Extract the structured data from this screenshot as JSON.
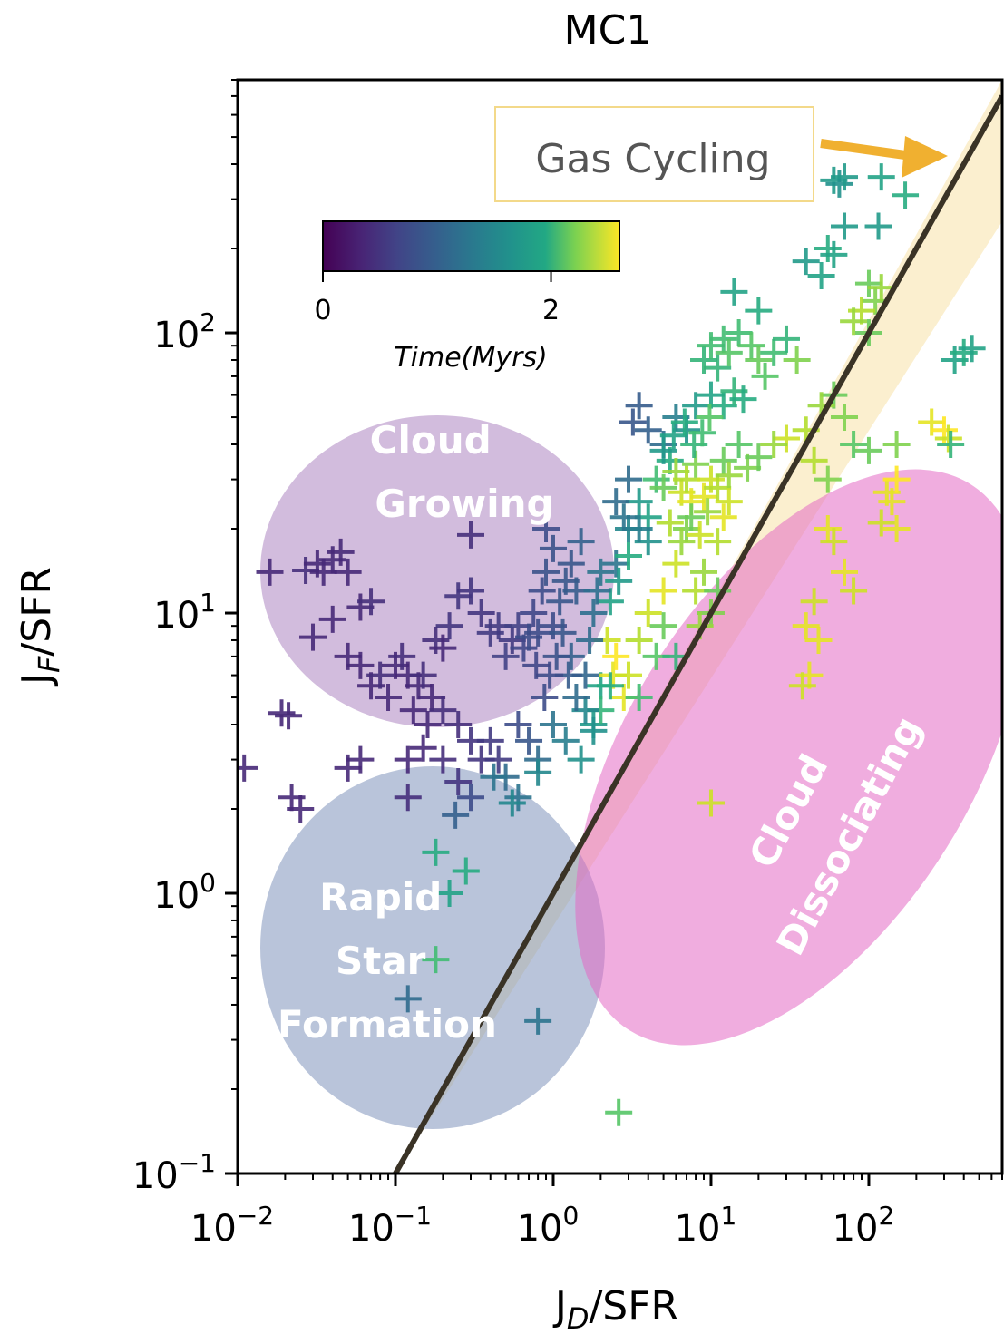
{
  "chart_data": {
    "type": "scatter",
    "title": "MC1",
    "xlabel": "J",
    "xlabel_sub": "D",
    "xlabel_suffix": "/SFR",
    "ylabel": "J",
    "ylabel_sub": "F",
    "ylabel_suffix": "/SFR",
    "xscale": "log",
    "yscale": "log",
    "xlim": [
      0.01,
      700
    ],
    "ylim": [
      0.1,
      800
    ],
    "x_ticks": [
      {
        "value": 0.01,
        "base": "10",
        "exp": "−2"
      },
      {
        "value": 0.1,
        "base": "10",
        "exp": "−1"
      },
      {
        "value": 1,
        "base": "10",
        "exp": "0"
      },
      {
        "value": 10,
        "base": "10",
        "exp": "1"
      },
      {
        "value": 100,
        "base": "10",
        "exp": "2"
      }
    ],
    "y_ticks": [
      {
        "value": 0.1,
        "base": "10",
        "exp": "−1"
      },
      {
        "value": 1,
        "base": "10",
        "exp": "0"
      },
      {
        "value": 10,
        "base": "10",
        "exp": "1"
      },
      {
        "value": 100,
        "base": "10",
        "exp": "2"
      }
    ],
    "grid": false,
    "marker": "plus",
    "colormap": "viridis",
    "colorbar": {
      "label": "Time(Myrs)",
      "range": [
        0,
        2.6
      ],
      "ticks": [
        {
          "value": 0,
          "label": "0"
        },
        {
          "value": 2,
          "label": "2"
        }
      ],
      "placement": "upper-left"
    },
    "line": {
      "name": "equality",
      "color": "#3a3326",
      "x": [
        0.1,
        700
      ],
      "y": [
        0.1,
        700
      ]
    },
    "band": {
      "color": "#f7dfa0",
      "lower": [
        [
          0.1,
          0.1
        ],
        [
          700,
          250
        ]
      ],
      "upper": [
        [
          0.1,
          0.1
        ],
        [
          700,
          800
        ]
      ]
    },
    "regions": [
      {
        "label_lines": [
          "Cloud",
          "Growing"
        ],
        "color": "#9b6ab3",
        "opacity": 0.45
      },
      {
        "label_lines": [
          "Rapid",
          "Star",
          "Formation"
        ],
        "color": "#7f93bb",
        "opacity": 0.55
      },
      {
        "label_lines": [
          "Cloud",
          "Dissociating"
        ],
        "color": "#e46ac4",
        "opacity": 0.55
      }
    ],
    "callout": {
      "text": "Gas Cycling",
      "arrow_color": "#f0b030",
      "box_edge": "#f3d98a"
    },
    "points": [
      [
        0.011,
        2.8,
        0.3
      ],
      [
        0.019,
        4.4,
        0.3
      ],
      [
        0.021,
        4.3,
        0.3
      ],
      [
        0.022,
        2.2,
        0.3
      ],
      [
        0.025,
        2.0,
        0.3
      ],
      [
        0.016,
        14.0,
        0.3
      ],
      [
        0.027,
        14.2,
        0.35
      ],
      [
        0.032,
        15.0,
        0.3
      ],
      [
        0.035,
        14.0,
        0.3
      ],
      [
        0.04,
        15.5,
        0.3
      ],
      [
        0.045,
        16.5,
        0.3
      ],
      [
        0.05,
        14.0,
        0.3
      ],
      [
        0.03,
        8.2,
        0.3
      ],
      [
        0.04,
        9.5,
        0.3
      ],
      [
        0.06,
        10.5,
        0.3
      ],
      [
        0.07,
        11.0,
        0.35
      ],
      [
        0.05,
        7.0,
        0.3
      ],
      [
        0.06,
        6.5,
        0.3
      ],
      [
        0.07,
        5.5,
        0.3
      ],
      [
        0.08,
        6.0,
        0.35
      ],
      [
        0.09,
        5.0,
        0.3
      ],
      [
        0.1,
        6.5,
        0.3
      ],
      [
        0.11,
        7.0,
        0.35
      ],
      [
        0.12,
        6.0,
        0.3
      ],
      [
        0.13,
        4.5,
        0.3
      ],
      [
        0.14,
        5.5,
        0.3
      ],
      [
        0.15,
        6.0,
        0.35
      ],
      [
        0.16,
        4.0,
        0.3
      ],
      [
        0.17,
        5.0,
        0.3
      ],
      [
        0.18,
        8.0,
        0.35
      ],
      [
        0.2,
        7.5,
        0.3
      ],
      [
        0.22,
        9.0,
        0.4
      ],
      [
        0.25,
        11.5,
        0.4
      ],
      [
        0.3,
        12.0,
        0.4
      ],
      [
        0.35,
        10.0,
        0.4
      ],
      [
        0.3,
        19.0,
        0.35
      ],
      [
        0.4,
        8.5,
        0.45
      ],
      [
        0.45,
        9.0,
        0.45
      ],
      [
        0.5,
        7.0,
        0.5
      ],
      [
        0.55,
        8.0,
        0.45
      ],
      [
        0.6,
        9.0,
        0.5
      ],
      [
        0.65,
        7.5,
        0.55
      ],
      [
        0.7,
        8.2,
        0.6
      ],
      [
        0.75,
        10.0,
        0.55
      ],
      [
        0.8,
        8.5,
        0.6
      ],
      [
        0.85,
        12.0,
        0.6
      ],
      [
        0.9,
        14.0,
        0.65
      ],
      [
        1.0,
        9.0,
        0.6
      ],
      [
        1.1,
        11.0,
        0.7
      ],
      [
        1.2,
        13.0,
        0.7
      ],
      [
        0.9,
        20.0,
        0.6
      ],
      [
        1.0,
        17.0,
        0.65
      ],
      [
        1.3,
        15.0,
        0.7
      ],
      [
        1.4,
        12.0,
        0.75
      ],
      [
        1.5,
        18.0,
        0.8
      ],
      [
        0.2,
        4.5,
        0.35
      ],
      [
        0.25,
        4.0,
        0.35
      ],
      [
        0.3,
        3.5,
        0.4
      ],
      [
        0.35,
        3.0,
        0.4
      ],
      [
        0.4,
        3.5,
        0.45
      ],
      [
        0.45,
        3.0,
        0.45
      ],
      [
        0.2,
        3.0,
        0.35
      ],
      [
        0.15,
        3.3,
        0.3
      ],
      [
        0.12,
        3.0,
        0.3
      ],
      [
        0.25,
        2.5,
        0.4
      ],
      [
        0.6,
        4.0,
        0.6
      ],
      [
        0.7,
        3.5,
        0.7
      ],
      [
        0.8,
        3.0,
        0.9
      ],
      [
        1.0,
        4.0,
        1.0
      ],
      [
        1.2,
        3.5,
        1.1
      ],
      [
        0.3,
        2.2,
        0.6
      ],
      [
        0.5,
        2.6,
        0.9
      ],
      [
        0.6,
        2.2,
        1.0
      ],
      [
        0.8,
        2.7,
        1.2
      ],
      [
        1.5,
        3.0,
        1.3
      ],
      [
        1.8,
        4.0,
        1.4
      ],
      [
        2.0,
        5.5,
        1.5
      ],
      [
        2.2,
        8.0,
        2.4
      ],
      [
        2.4,
        6.0,
        2.5
      ],
      [
        2.5,
        7.0,
        2.6
      ],
      [
        0.55,
        2.1,
        1.2
      ],
      [
        0.42,
        2.6,
        1.0
      ],
      [
        0.12,
        2.2,
        0.35
      ],
      [
        0.05,
        2.8,
        0.3
      ],
      [
        0.06,
        3.0,
        0.3
      ],
      [
        0.18,
        1.4,
        1.6
      ],
      [
        0.22,
        1.0,
        1.5
      ],
      [
        0.28,
        1.2,
        1.6
      ],
      [
        0.24,
        1.9,
        0.8
      ],
      [
        0.12,
        0.42,
        0.9
      ],
      [
        0.18,
        0.58,
        1.8
      ],
      [
        0.8,
        0.35,
        1.0
      ],
      [
        2.6,
        0.165,
        1.9
      ],
      [
        2.5,
        15.0,
        1.0
      ],
      [
        3.0,
        20.0,
        1.2
      ],
      [
        3.5,
        25.0,
        1.4
      ],
      [
        4.0,
        22.0,
        1.5
      ],
      [
        4.5,
        30.0,
        1.8
      ],
      [
        5.0,
        28.0,
        2.0
      ],
      [
        5.5,
        35.0,
        1.6
      ],
      [
        6.0,
        32.0,
        2.2
      ],
      [
        6.5,
        27.0,
        2.4
      ],
      [
        7.0,
        30.0,
        2.3
      ],
      [
        7.5,
        25.0,
        2.5
      ],
      [
        8.0,
        34.0,
        2.1
      ],
      [
        9.0,
        26.0,
        2.5
      ],
      [
        10.0,
        30.0,
        2.4
      ],
      [
        11.0,
        28.0,
        2.3
      ],
      [
        12.0,
        35.0,
        2.0
      ],
      [
        13.0,
        31.0,
        2.2
      ],
      [
        15.0,
        40.0,
        1.9
      ],
      [
        17.0,
        33.0,
        2.1
      ],
      [
        20.0,
        36.0,
        2.0
      ],
      [
        4.0,
        45.0,
        0.8
      ],
      [
        5.0,
        40.0,
        0.9
      ],
      [
        6.0,
        50.0,
        1.1
      ],
      [
        7.0,
        45.0,
        1.3
      ],
      [
        8.0,
        55.0,
        1.4
      ],
      [
        3.2,
        48.0,
        0.7
      ],
      [
        3.5,
        55.0,
        0.75
      ],
      [
        10.0,
        60.0,
        1.5
      ],
      [
        12.0,
        55.0,
        1.6
      ],
      [
        14.0,
        62.0,
        1.7
      ],
      [
        16.0,
        58.0,
        1.6
      ],
      [
        9.0,
        80.0,
        1.7
      ],
      [
        10.0,
        90.0,
        1.8
      ],
      [
        11.0,
        75.0,
        1.7
      ],
      [
        12.0,
        95.0,
        1.8
      ],
      [
        13.0,
        85.0,
        1.9
      ],
      [
        15.0,
        100.0,
        1.8
      ],
      [
        18.0,
        90.0,
        1.9
      ],
      [
        20.0,
        80.0,
        2.0
      ],
      [
        22.0,
        70.0,
        1.9
      ],
      [
        25.0,
        85.0,
        1.8
      ],
      [
        30.0,
        95.0,
        1.7
      ],
      [
        35.0,
        80.0,
        2.1
      ],
      [
        14.0,
        140.0,
        1.5
      ],
      [
        20.0,
        120.0,
        1.6
      ],
      [
        40.0,
        180.0,
        1.4
      ],
      [
        50.0,
        160.0,
        1.5
      ],
      [
        55.0,
        200.0,
        1.6
      ],
      [
        60.0,
        190.0,
        1.5
      ],
      [
        70.0,
        240.0,
        1.4
      ],
      [
        60.0,
        350.0,
        1.4
      ],
      [
        65.0,
        340.0,
        1.3
      ],
      [
        70.0,
        360.0,
        1.4
      ],
      [
        120.0,
        360.0,
        1.5
      ],
      [
        170.0,
        310.0,
        1.6
      ],
      [
        115.0,
        240.0,
        1.4
      ],
      [
        100.0,
        150.0,
        2.0
      ],
      [
        110.0,
        130.0,
        2.1
      ],
      [
        120.0,
        145.0,
        2.2
      ],
      [
        100.0,
        100.0,
        2.0
      ],
      [
        90.0,
        120.0,
        2.3
      ],
      [
        80.0,
        110.0,
        2.2
      ],
      [
        60.0,
        60.0,
        2.0
      ],
      [
        70.0,
        50.0,
        2.1
      ],
      [
        50.0,
        55.0,
        2.2
      ],
      [
        40.0,
        45.0,
        2.3
      ],
      [
        30.0,
        42.0,
        2.4
      ],
      [
        25.0,
        40.0,
        2.2
      ],
      [
        45.0,
        35.0,
        2.3
      ],
      [
        55.0,
        30.0,
        2.1
      ],
      [
        80.0,
        40.0,
        1.9
      ],
      [
        100.0,
        38.0,
        2.0
      ],
      [
        150.0,
        40.0,
        2.1
      ],
      [
        250.0,
        48.0,
        2.5
      ],
      [
        300.0,
        45.0,
        2.6
      ],
      [
        320.0,
        42.0,
        2.4
      ],
      [
        330.0,
        40.0,
        1.7
      ],
      [
        350.0,
        80.0,
        1.5
      ],
      [
        400.0,
        85.0,
        1.6
      ],
      [
        450.0,
        88.0,
        1.5
      ],
      [
        8.0,
        12.0,
        2.3
      ],
      [
        9.0,
        14.0,
        2.2
      ],
      [
        10.0,
        10.0,
        2.1
      ],
      [
        11.0,
        12.0,
        2.0
      ],
      [
        8.5,
        9.0,
        2.2
      ],
      [
        6.0,
        15.0,
        2.4
      ],
      [
        5.0,
        12.0,
        2.5
      ],
      [
        4.0,
        10.0,
        2.4
      ],
      [
        3.5,
        8.0,
        2.3
      ],
      [
        3.0,
        6.0,
        2.4
      ],
      [
        2.8,
        5.0,
        2.5
      ],
      [
        2.3,
        5.5,
        1.6
      ],
      [
        2.0,
        4.5,
        1.7
      ],
      [
        3.5,
        5.0,
        1.8
      ],
      [
        4.5,
        7.0,
        1.9
      ],
      [
        5.0,
        9.0,
        2.0
      ],
      [
        6.0,
        7.0,
        1.7
      ],
      [
        2.3,
        11.0,
        1.5
      ],
      [
        2.6,
        13.0,
        1.4
      ],
      [
        3.0,
        16.0,
        1.6
      ],
      [
        40.0,
        9.0,
        2.5
      ],
      [
        45.0,
        11.0,
        2.4
      ],
      [
        48.0,
        8.0,
        2.5
      ],
      [
        42.0,
        6.0,
        2.5
      ],
      [
        38.0,
        5.5,
        2.4
      ],
      [
        55.0,
        20.0,
        2.5
      ],
      [
        60.0,
        18.0,
        2.4
      ],
      [
        70.0,
        14.0,
        2.5
      ],
      [
        80.0,
        12.0,
        2.4
      ],
      [
        130.0,
        27.0,
        2.5
      ],
      [
        150.0,
        30.0,
        2.6
      ],
      [
        140.0,
        25.0,
        2.5
      ],
      [
        120.0,
        21.0,
        2.4
      ],
      [
        150.0,
        20.0,
        2.5
      ],
      [
        10.0,
        2.1,
        2.4
      ],
      [
        7.0,
        20.0,
        2.1
      ],
      [
        7.5,
        22.0,
        2.0
      ],
      [
        6.5,
        18.0,
        2.2
      ],
      [
        5.5,
        21.0,
        2.3
      ],
      [
        8.5,
        19.0,
        2.4
      ],
      [
        9.5,
        23.0,
        2.2
      ],
      [
        11.0,
        18.0,
        2.3
      ],
      [
        12.0,
        22.0,
        2.5
      ],
      [
        13.0,
        25.0,
        2.4
      ],
      [
        4.0,
        18.0,
        1.3
      ],
      [
        3.5,
        20.0,
        1.1
      ],
      [
        2.8,
        22.0,
        1.0
      ],
      [
        2.5,
        25.0,
        0.9
      ],
      [
        3.0,
        30.0,
        0.9
      ],
      [
        5.0,
        38.0,
        1.4
      ],
      [
        5.8,
        43.0,
        1.5
      ],
      [
        6.8,
        48.0,
        1.6
      ],
      [
        7.8,
        40.0,
        1.7
      ],
      [
        8.8,
        44.0,
        1.8
      ],
      [
        9.8,
        50.0,
        1.9
      ],
      [
        1.6,
        6.0,
        0.85
      ],
      [
        1.7,
        8.0,
        0.9
      ],
      [
        1.8,
        10.0,
        0.95
      ],
      [
        1.9,
        12.0,
        0.95
      ],
      [
        2.0,
        14.0,
        1.0
      ],
      [
        1.6,
        4.5,
        1.2
      ],
      [
        1.8,
        3.8,
        1.3
      ],
      [
        1.4,
        5.0,
        0.9
      ],
      [
        1.3,
        7.0,
        0.8
      ],
      [
        1.25,
        6.0,
        0.75
      ],
      [
        1.15,
        8.5,
        0.7
      ],
      [
        1.05,
        7.0,
        0.65
      ],
      [
        0.95,
        6.0,
        0.6
      ],
      [
        0.88,
        5.0,
        0.6
      ],
      [
        0.78,
        6.5,
        0.55
      ]
    ]
  }
}
